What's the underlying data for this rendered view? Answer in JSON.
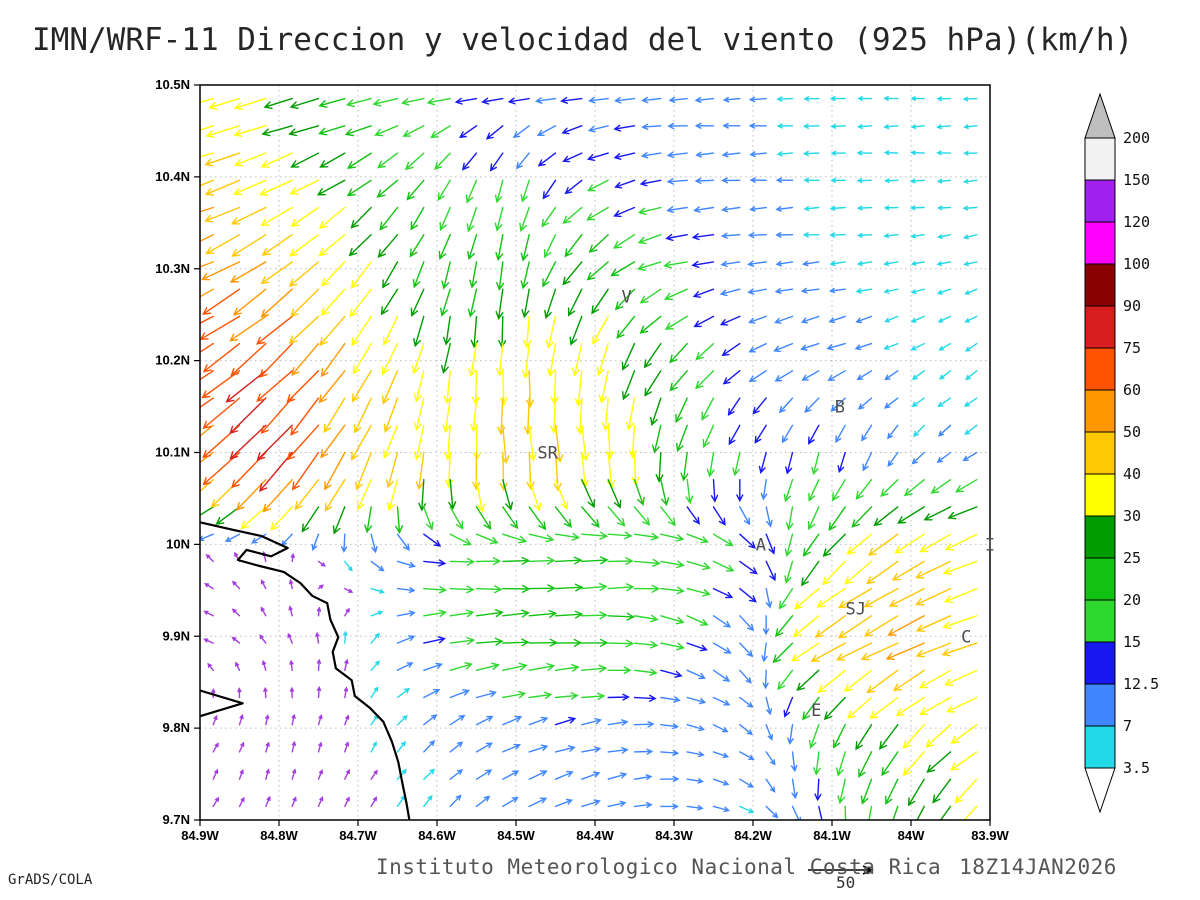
{
  "title": "IMN/WRF-11 Direccion y velocidad del viento (925 hPa)(km/h)",
  "credit": "GrADS/COLA",
  "footer": {
    "institute": "Instituto Meteorologico Nacional Costa Rica",
    "datetime": "18Z14JAN2026",
    "ref_value": "50"
  },
  "axes": {
    "lon_range": [
      84.9,
      83.9
    ],
    "lat_range": [
      9.7,
      10.5
    ],
    "x_values": [
      84.9,
      84.8,
      84.7,
      84.6,
      84.5,
      84.4,
      84.3,
      84.2,
      84.1,
      84.0,
      83.9
    ],
    "x_labels": [
      "84.9W",
      "84.8W",
      "84.7W",
      "84.6W",
      "84.5W",
      "84.4W",
      "84.3W",
      "84.2W",
      "84.1W",
      "84W",
      "83.9W"
    ],
    "y_values": [
      10.5,
      10.4,
      10.3,
      10.2,
      10.1,
      10.0,
      9.9,
      9.8,
      9.7
    ],
    "y_labels": [
      "10.5N",
      "10.4N",
      "10.3N",
      "10.2N",
      "10.1N",
      "10N",
      "9.9N",
      "9.8N",
      "9.7N"
    ]
  },
  "colorbar": {
    "levels": [
      3.5,
      7,
      12.5,
      15,
      20,
      25,
      30,
      40,
      50,
      60,
      75,
      90,
      100,
      120,
      150,
      200
    ],
    "colors_bottom_up": [
      "#22d9e8",
      "#3f86ff",
      "#1818f0",
      "#2fd82f",
      "#12c212",
      "#009c00",
      "#ffff00",
      "#ffc800",
      "#ff9800",
      "#ff5200",
      "#d81e1e",
      "#8b0000",
      "#ff00ff",
      "#a020f0",
      "#f2f2f2"
    ],
    "below_triangle_color": "#ffffff",
    "above_triangle_color": "#bfbfbf",
    "weak_arrow_color": "#a43ce0"
  },
  "stations": [
    {
      "id": "V",
      "lon": 84.36,
      "lat": 10.27
    },
    {
      "id": "SR",
      "lon": 84.46,
      "lat": 10.1
    },
    {
      "id": "B",
      "lon": 84.09,
      "lat": 10.15
    },
    {
      "id": "A",
      "lon": 84.19,
      "lat": 10.0
    },
    {
      "id": "SJ",
      "lon": 84.07,
      "lat": 9.93
    },
    {
      "id": "C",
      "lon": 83.93,
      "lat": 9.9
    },
    {
      "id": "E",
      "lon": 84.12,
      "lat": 9.82
    },
    {
      "id": "I",
      "lon": 83.9,
      "lat": 10.0
    }
  ],
  "coastlines": [
    [
      [
        84.9,
        10.024
      ],
      [
        84.859,
        10.016
      ],
      [
        84.822,
        10.009
      ],
      [
        84.789,
        9.996
      ],
      [
        84.81,
        9.987
      ],
      [
        84.841,
        9.994
      ],
      [
        84.852,
        9.983
      ],
      [
        84.827,
        9.977
      ],
      [
        84.794,
        9.97
      ],
      [
        84.773,
        9.958
      ],
      [
        84.758,
        9.944
      ],
      [
        84.739,
        9.936
      ],
      [
        84.735,
        9.918
      ],
      [
        84.725,
        9.899
      ],
      [
        84.732,
        9.883
      ],
      [
        84.728,
        9.865
      ],
      [
        84.708,
        9.852
      ],
      [
        84.704,
        9.835
      ],
      [
        84.685,
        9.822
      ],
      [
        84.668,
        9.807
      ],
      [
        84.657,
        9.785
      ],
      [
        84.649,
        9.763
      ],
      [
        84.644,
        9.741
      ],
      [
        84.639,
        9.72
      ],
      [
        84.635,
        9.7
      ]
    ],
    [
      [
        84.9,
        9.813
      ],
      [
        84.846,
        9.827
      ],
      [
        84.9,
        9.841
      ]
    ]
  ],
  "chart_data": {
    "type": "vector_field",
    "units": "km/h",
    "level": "925 hPa",
    "reference_speed": 50,
    "direction_convention": "math degrees: 0=east, 90=north (direction arrow points)",
    "lats": [
      10.5,
      10.4,
      10.3,
      10.2,
      10.1,
      10.0,
      9.9,
      9.8,
      9.7
    ],
    "lons_w": [
      84.9,
      84.8,
      84.7,
      84.6,
      84.5,
      84.4,
      84.3,
      84.2,
      84.1,
      84.0,
      83.9
    ],
    "direction_deg": [
      [
        196,
        192,
        188,
        185,
        183,
        183,
        182,
        182,
        182,
        183,
        184
      ],
      [
        198,
        204,
        213,
        236,
        256,
        206,
        186,
        183,
        181,
        180,
        184
      ],
      [
        203,
        216,
        229,
        252,
        264,
        229,
        192,
        186,
        185,
        190,
        196
      ],
      [
        211,
        222,
        237,
        259,
        269,
        259,
        231,
        211,
        200,
        210,
        220
      ],
      [
        217,
        227,
        242,
        265,
        275,
        280,
        262,
        251,
        255,
        230,
        211
      ],
      [
        140,
        95,
        300,
        350,
        0,
        8,
        352,
        320,
        231,
        214,
        201
      ],
      [
        168,
        120,
        80,
        10,
        4,
        0,
        341,
        301,
        211,
        206,
        196
      ],
      [
        60,
        80,
        70,
        40,
        20,
        10,
        350,
        320,
        251,
        230,
        211
      ],
      [
        60,
        70,
        60,
        50,
        30,
        20,
        0,
        330,
        281,
        251,
        231
      ]
    ],
    "speed": [
      [
        34,
        28,
        20,
        16,
        14,
        12,
        10,
        8,
        6,
        5,
        5
      ],
      [
        44,
        38,
        26,
        18,
        16,
        15,
        12,
        8,
        6,
        5,
        5
      ],
      [
        58,
        50,
        35,
        22,
        24,
        28,
        18,
        10,
        7,
        5,
        5
      ],
      [
        68,
        75,
        45,
        30,
        38,
        36,
        25,
        12,
        12,
        6,
        5
      ],
      [
        55,
        85,
        50,
        38,
        45,
        40,
        25,
        14,
        15,
        8,
        8
      ],
      [
        3,
        3,
        8,
        16,
        20,
        20,
        18,
        15,
        28,
        44,
        40
      ],
      [
        3,
        3,
        4,
        18,
        24,
        20,
        16,
        10,
        44,
        54,
        36
      ],
      [
        3,
        3,
        3,
        8,
        12,
        12,
        9,
        7,
        20,
        30,
        34
      ],
      [
        3,
        3,
        3,
        6,
        10,
        10,
        8,
        7,
        15,
        25,
        30
      ]
    ]
  }
}
